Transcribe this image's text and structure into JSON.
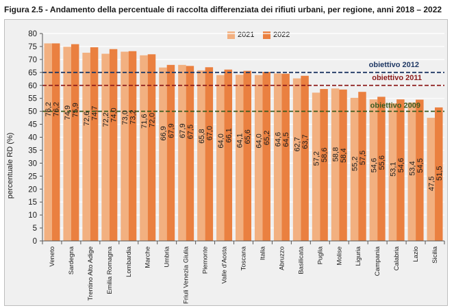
{
  "figure_title": "Figura 2.5 - Andamento della percentuale di raccolta differenziata dei rifiuti urbani, per regione, anni 2018 – 2022",
  "colors": {
    "series_2021": "#f2b080",
    "series_2022": "#ea8040",
    "obj2012": "#1f3864",
    "obj2011": "#8b1a1a",
    "obj2009": "#3a5a1e"
  },
  "chart_data": {
    "type": "bar",
    "ylabel": "percentuale RD (%)",
    "ylim": [
      0,
      80
    ],
    "yticks": [
      0,
      5,
      10,
      15,
      20,
      25,
      30,
      35,
      40,
      45,
      50,
      55,
      60,
      65,
      70,
      75,
      80
    ],
    "grid": true,
    "legend_position": "top-center",
    "categories": [
      "Veneto",
      "Sardegna",
      "Trentino Alto Adige",
      "Emilia Romagna",
      "Lombardia",
      "Marche",
      "Umbria",
      "Friuli Venezia Giulia",
      "Piemonte",
      "Valle d'Aosta",
      "Toscana",
      "Italia",
      "Abruzzo",
      "Basilicata",
      "Puglia",
      "Molise",
      "Liguria",
      "Campania",
      "Calabria",
      "Lazio",
      "Sicilia"
    ],
    "series": [
      {
        "name": "2021",
        "values": [
          76.2,
          74.9,
          72.6,
          72.2,
          73.0,
          71.6,
          66.9,
          67.9,
          65.8,
          64.0,
          64.1,
          64.0,
          64.6,
          62.7,
          57.2,
          58.8,
          55.2,
          54.6,
          53.1,
          53.4,
          47.5
        ],
        "labels": [
          "76,2",
          "74,9",
          "72,6",
          "72,2",
          "73,0",
          "71,6",
          "66,9",
          "67,9",
          "65,8",
          "64,0",
          "64,1",
          "64,0",
          "64,6",
          "62,7",
          "57,2",
          "58,8",
          "55,2",
          "54,6",
          "53,1",
          "53,4",
          "47,5"
        ]
      },
      {
        "name": "2022",
        "values": [
          76.2,
          75.9,
          74.7,
          74.0,
          73.2,
          72.0,
          67.9,
          67.5,
          67.0,
          66.1,
          65.6,
          65.2,
          64.5,
          63.7,
          58.6,
          58.4,
          57.5,
          55.6,
          54.6,
          54.5,
          51.5
        ],
        "labels": [
          "76,2",
          "75,9",
          "74,7",
          "74,0",
          "73,2",
          "72,0",
          "67,9",
          "67,5",
          "67,0",
          "66,1",
          "65,6",
          "65,2",
          "64,5",
          "63,7",
          "58,6",
          "58,4",
          "57,5",
          "55,6",
          "54,6",
          "54,5",
          "51,5"
        ]
      }
    ],
    "reference_lines": [
      {
        "name": "obiettivo 2012",
        "value": 65,
        "color": "#1f3864"
      },
      {
        "name": "obiettivo 2011",
        "value": 60,
        "color": "#8b1a1a"
      },
      {
        "name": "obiettivo 2009",
        "value": 50,
        "color": "#3a5a1e"
      }
    ]
  }
}
